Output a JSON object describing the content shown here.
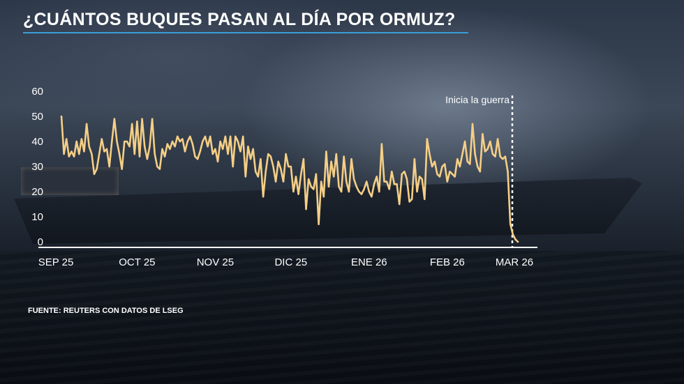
{
  "title": "¿CUÁNTOS BUQUES PASAN AL DÍA POR ORMUZ?",
  "source": "FUENTE: REUTERS CON DATOS DE LSEG",
  "colors": {
    "line": "#f5cf86",
    "accent_rule": "#3b9ed8",
    "axis": "#ffffff",
    "text": "#ffffff"
  },
  "chart_data": {
    "type": "line",
    "title": "¿CUÁNTOS BUQUES PASAN AL DÍA POR ORMUZ?",
    "xlabel": "",
    "ylabel": "",
    "ylim": [
      0,
      60
    ],
    "yticks": [
      0,
      10,
      20,
      30,
      40,
      50,
      60
    ],
    "xtick_labels": [
      "SEP 25",
      "OCT 25",
      "NOV 25",
      "DIC 25",
      "ENE 26",
      "FEB 26",
      "MAR 26"
    ],
    "xtick_positions": [
      0,
      30,
      61,
      91,
      122,
      153,
      181
    ],
    "grid": false,
    "annotation": {
      "text": "Inicia la guerra",
      "x": 181
    },
    "series": [
      {
        "values": [
          50,
          35,
          41,
          34,
          36,
          34,
          40,
          35,
          41,
          36,
          47,
          38,
          35,
          27,
          29,
          35,
          41,
          36,
          37,
          30,
          40,
          49,
          40,
          35,
          29,
          40,
          40,
          38,
          47,
          35,
          48,
          34,
          49,
          38,
          33,
          38,
          49,
          35,
          30,
          29,
          37,
          34,
          39,
          37,
          40,
          38,
          42,
          40,
          41,
          36,
          40,
          42,
          39,
          34,
          33,
          36,
          40,
          42,
          38,
          42,
          35,
          37,
          32,
          40,
          37,
          42,
          35,
          42,
          30,
          42,
          40,
          36,
          42,
          26,
          38,
          33,
          37,
          28,
          26,
          33,
          18,
          28,
          35,
          34,
          30,
          24,
          32,
          29,
          24,
          35,
          30,
          30,
          20,
          26,
          19,
          27,
          33,
          13,
          25,
          22,
          21,
          27,
          7,
          24,
          18,
          36,
          22,
          32,
          26,
          35,
          22,
          20,
          34,
          24,
          20,
          33,
          25,
          22,
          20,
          19,
          21,
          24,
          20,
          18,
          23,
          26,
          20,
          39,
          24,
          24,
          21,
          28,
          23,
          23,
          15,
          27,
          28,
          25,
          16,
          17,
          33,
          20,
          26,
          25,
          17,
          41,
          35,
          30,
          32,
          27,
          26,
          30,
          31,
          24,
          28,
          27,
          26,
          33,
          30,
          35,
          40,
          32,
          31,
          47,
          35,
          30,
          28,
          43,
          36,
          37,
          40,
          35,
          34,
          41,
          34,
          33,
          34,
          28,
          7,
          3,
          1,
          0
        ]
      }
    ]
  }
}
